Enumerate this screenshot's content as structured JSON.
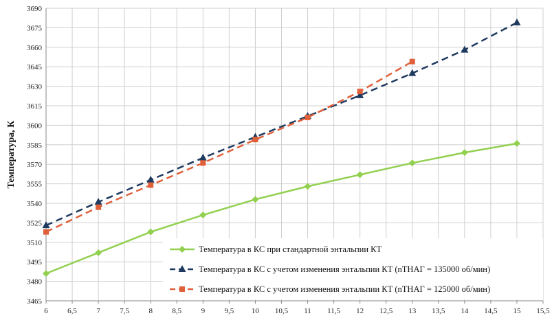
{
  "chart_data": {
    "type": "line",
    "title": "",
    "xlabel": "",
    "ylabel": "Температура, К",
    "xlim": [
      6,
      15.5
    ],
    "ylim": [
      3465,
      3690
    ],
    "xticks": [
      6,
      6.5,
      7,
      7.5,
      8,
      8.5,
      9,
      9.5,
      10,
      10.5,
      11,
      11.5,
      12,
      12.5,
      13,
      13.5,
      14,
      14.5,
      15,
      15.5
    ],
    "xtick_labels": [
      "6",
      "6,5",
      "7",
      "7,5",
      "8",
      "8,5",
      "9",
      "9,5",
      "10",
      "10,5",
      "11",
      "11,5",
      "12",
      "12,5",
      "13",
      "13,5",
      "14",
      "14,5",
      "15",
      "15,5"
    ],
    "yticks": [
      3465,
      3480,
      3495,
      3510,
      3525,
      3540,
      3555,
      3570,
      3585,
      3600,
      3615,
      3630,
      3645,
      3660,
      3675,
      3690
    ],
    "ytick_labels": [
      "3465",
      "3480",
      "3495",
      "3510",
      "3525",
      "3540",
      "3555",
      "3570",
      "3585",
      "3600",
      "3615",
      "3630",
      "3645",
      "3660",
      "3675",
      "3690"
    ],
    "grid": true,
    "legend_position": "bottom-right",
    "series": [
      {
        "name": "Температура в КС при стандартной энтальпии КТ",
        "color": "#92d050",
        "dash": "solid",
        "marker": "diamond",
        "x": [
          6,
          7,
          8,
          9,
          10,
          11,
          12,
          13,
          14,
          15
        ],
        "y": [
          3486,
          3502,
          3518,
          3531,
          3543,
          3553,
          3562,
          3571,
          3579,
          3586
        ]
      },
      {
        "name": "Температура в КС с учетом изменения энтальпии КТ (nТНАГ = 135000 об/мин)",
        "color": "#1f3a5f",
        "dash": "dashed",
        "marker": "triangle",
        "x": [
          6,
          7,
          8,
          9,
          10,
          11,
          12,
          13,
          14,
          15
        ],
        "y": [
          3523,
          3541,
          3558,
          3575,
          3591,
          3607,
          3623,
          3640,
          3658,
          3679
        ]
      },
      {
        "name": "Температура в КС с учетом изменения энтальпии КТ (nТНАГ = 125000 об/мин)",
        "color": "#e0603a",
        "dash": "dashed",
        "marker": "square",
        "x": [
          6,
          7,
          8,
          9,
          10,
          11,
          12,
          13
        ],
        "y": [
          3518,
          3537,
          3554,
          3571,
          3589,
          3606,
          3626,
          3649
        ]
      }
    ]
  }
}
